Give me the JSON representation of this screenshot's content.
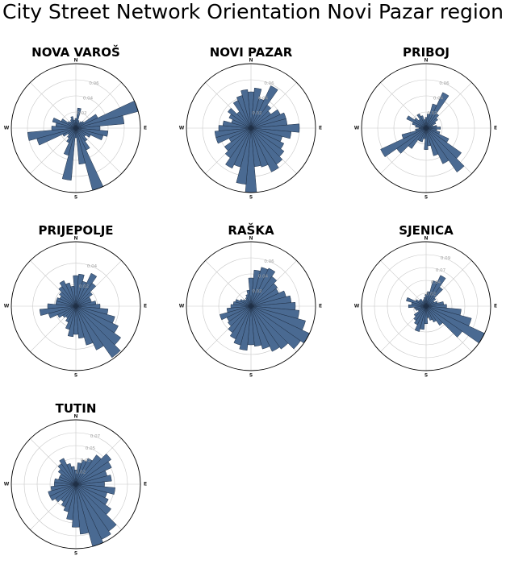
{
  "title": "City Street Network Orientation Novi Pazar region",
  "colors": {
    "bar_fill": "#4a6a92",
    "bar_edge": "#1f2f45",
    "grid": "#c8c8c8",
    "outline": "#000000"
  },
  "compass_labels": [
    "N",
    "E",
    "S",
    "W"
  ],
  "bin_directions_deg": [
    0,
    10,
    20,
    30,
    40,
    50,
    60,
    70,
    80,
    90,
    100,
    110,
    120,
    130,
    140,
    150,
    160,
    170,
    180,
    190,
    200,
    210,
    220,
    230,
    240,
    250,
    260,
    270,
    280,
    290,
    300,
    310,
    320,
    330,
    340,
    350
  ],
  "chart_data": [
    {
      "type": "polar-histogram",
      "title": "NOVA VAROŠ",
      "r_ticks": [
        "0.02",
        "0.04",
        "0.06"
      ],
      "r_max": 0.08,
      "values": [
        0.012,
        0.025,
        0.01,
        0.008,
        0.01,
        0.012,
        0.03,
        0.08,
        0.06,
        0.03,
        0.04,
        0.035,
        0.02,
        0.015,
        0.02,
        0.03,
        0.085,
        0.045,
        0.012,
        0.065,
        0.035,
        0.02,
        0.015,
        0.012,
        0.018,
        0.05,
        0.06,
        0.03,
        0.025,
        0.03,
        0.02,
        0.012,
        0.01,
        0.012,
        0.015,
        0.01
      ]
    },
    {
      "type": "polar-histogram",
      "title": "NOVI PAZAR",
      "r_ticks": [
        "0.02",
        "0.04",
        "0.06"
      ],
      "r_max": 0.08,
      "values": [
        0.045,
        0.05,
        0.038,
        0.058,
        0.035,
        0.03,
        0.04,
        0.045,
        0.045,
        0.06,
        0.05,
        0.04,
        0.045,
        0.05,
        0.055,
        0.06,
        0.05,
        0.048,
        0.085,
        0.07,
        0.05,
        0.055,
        0.045,
        0.04,
        0.03,
        0.045,
        0.045,
        0.04,
        0.035,
        0.025,
        0.03,
        0.035,
        0.025,
        0.038,
        0.042,
        0.048
      ]
    },
    {
      "type": "polar-histogram",
      "title": "PRIBOJ",
      "r_ticks": [
        "0.02",
        "0.04",
        "0.06"
      ],
      "r_max": 0.09,
      "values": [
        0.015,
        0.02,
        0.035,
        0.055,
        0.025,
        0.02,
        0.015,
        0.01,
        0.015,
        0.02,
        0.015,
        0.02,
        0.035,
        0.06,
        0.075,
        0.055,
        0.04,
        0.025,
        0.03,
        0.015,
        0.02,
        0.02,
        0.035,
        0.05,
        0.07,
        0.035,
        0.015,
        0.01,
        0.015,
        0.02,
        0.03,
        0.02,
        0.015,
        0.022,
        0.018,
        0.012
      ]
    },
    {
      "type": "polar-histogram",
      "title": "PRIJEPOLJE",
      "r_ticks": [
        "0.02",
        "0.04"
      ],
      "r_max": 0.08,
      "values": [
        0.038,
        0.04,
        0.032,
        0.045,
        0.035,
        0.025,
        0.02,
        0.02,
        0.025,
        0.03,
        0.04,
        0.05,
        0.058,
        0.068,
        0.078,
        0.06,
        0.05,
        0.04,
        0.035,
        0.038,
        0.03,
        0.022,
        0.018,
        0.02,
        0.025,
        0.035,
        0.045,
        0.035,
        0.025,
        0.025,
        0.022,
        0.025,
        0.03,
        0.035,
        0.03,
        0.025
      ]
    },
    {
      "type": "polar-histogram",
      "title": "RAŠKA",
      "r_ticks": [
        "0.02",
        "0.04",
        "0.06"
      ],
      "r_max": 0.08,
      "values": [
        0.035,
        0.045,
        0.05,
        0.052,
        0.045,
        0.04,
        0.038,
        0.045,
        0.05,
        0.055,
        0.06,
        0.07,
        0.082,
        0.075,
        0.065,
        0.062,
        0.055,
        0.05,
        0.048,
        0.055,
        0.05,
        0.045,
        0.04,
        0.035,
        0.033,
        0.04,
        0.03,
        0.025,
        0.022,
        0.02,
        0.015,
        0.012,
        0.01,
        0.012,
        0.015,
        0.02
      ]
    },
    {
      "type": "polar-histogram",
      "title": "SJENICA",
      "r_ticks": [
        "0.02",
        "0.04",
        "0.07",
        "0.09"
      ],
      "r_max": 0.11,
      "values": [
        0.02,
        0.025,
        0.045,
        0.058,
        0.04,
        0.02,
        0.015,
        0.02,
        0.03,
        0.035,
        0.06,
        0.08,
        0.11,
        0.075,
        0.04,
        0.03,
        0.025,
        0.02,
        0.03,
        0.04,
        0.045,
        0.035,
        0.03,
        0.025,
        0.015,
        0.018,
        0.02,
        0.03,
        0.025,
        0.035,
        0.02,
        0.015,
        0.015,
        0.01,
        0.012,
        0.015
      ]
    },
    {
      "type": "polar-histogram",
      "title": "TUTIN",
      "r_ticks": [
        "0.02",
        "0.03",
        "0.05",
        "0.07"
      ],
      "r_max": 0.09,
      "values": [
        0.02,
        0.03,
        0.035,
        0.04,
        0.05,
        0.06,
        0.055,
        0.045,
        0.05,
        0.04,
        0.055,
        0.045,
        0.05,
        0.06,
        0.08,
        0.085,
        0.09,
        0.07,
        0.06,
        0.05,
        0.04,
        0.035,
        0.03,
        0.035,
        0.04,
        0.04,
        0.035,
        0.03,
        0.03,
        0.025,
        0.025,
        0.03,
        0.035,
        0.04,
        0.03,
        0.025
      ]
    }
  ]
}
